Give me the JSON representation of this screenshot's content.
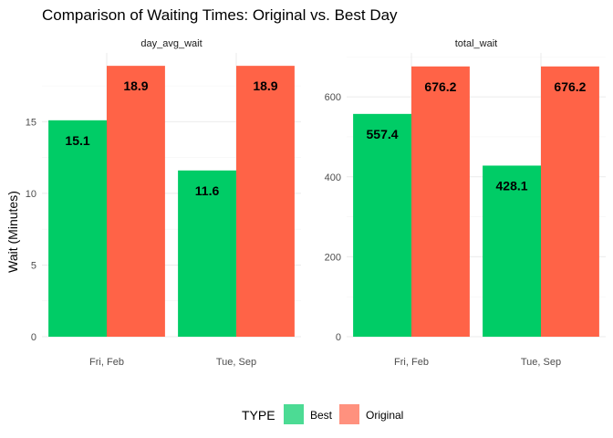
{
  "chart_data": {
    "type": "bar",
    "title": "Comparison of Waiting Times: Original vs. Best Day",
    "ylabel": "Wait (Minutes)",
    "legend": {
      "title": "TYPE",
      "position": "bottom",
      "entries": [
        {
          "name": "Best",
          "color": "#00CC66"
        },
        {
          "name": "Original",
          "color": "#FF6347"
        }
      ]
    },
    "panels": [
      {
        "strip": "day_avg_wait",
        "categories": [
          "Fri, Feb",
          "Tue, Sep"
        ],
        "ylim": [
          0,
          19.8
        ],
        "yticks": [
          0,
          5,
          10,
          15
        ],
        "series": [
          {
            "name": "Best",
            "values": [
              15.1,
              11.6
            ],
            "labels": [
              "15.1",
              "11.6"
            ]
          },
          {
            "name": "Original",
            "values": [
              18.9,
              18.9
            ],
            "labels": [
              "18.9",
              "18.9"
            ]
          }
        ]
      },
      {
        "strip": "total_wait",
        "categories": [
          "Fri, Feb",
          "Tue, Sep"
        ],
        "ylim": [
          0,
          710
        ],
        "yticks": [
          0,
          200,
          400,
          600
        ],
        "series": [
          {
            "name": "Best",
            "values": [
              557.4,
              428.1
            ],
            "labels": [
              "557.4",
              "428.1"
            ]
          },
          {
            "name": "Original",
            "values": [
              676.2,
              676.2
            ],
            "labels": [
              "676.2",
              "676.2"
            ]
          }
        ]
      }
    ]
  }
}
